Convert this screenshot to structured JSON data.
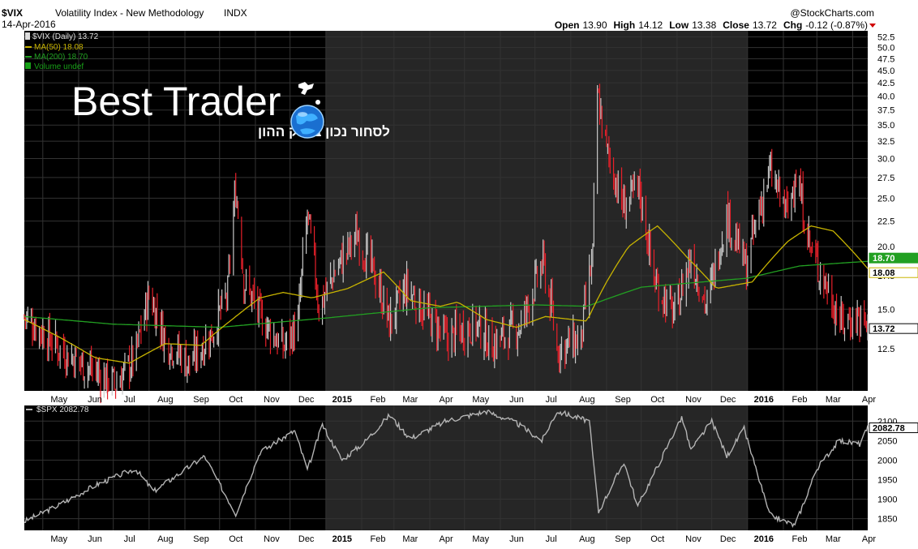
{
  "header": {
    "symbol": "$VIX",
    "name": "Volatility Index - New Methodology",
    "exchange": "INDX",
    "date": "14-Apr-2016",
    "watermark": "@StockCharts.com",
    "ohlc": [
      {
        "label": "Open",
        "value": "13.90"
      },
      {
        "label": "High",
        "value": "14.12"
      },
      {
        "label": "Low",
        "value": "13.38"
      },
      {
        "label": "Close",
        "value": "13.72"
      },
      {
        "label": "Chg",
        "value": "-0.12 (-0.87%)"
      }
    ]
  },
  "logo": {
    "title": "Best Trader",
    "subtitle": "לסחור נכון בשוק ההון"
  },
  "colors": {
    "background": "#000000",
    "shaded_year": "#262626",
    "down_bar": "#e8202a",
    "up_bar": "#c8c8c8",
    "ma50": "#c8b400",
    "ma200": "#22a022",
    "spx_line": "#b4b4b4",
    "grid": "#333333",
    "volume_legend": "#18a018",
    "chg_arrow": "#d00000"
  },
  "chart_data": [
    {
      "type": "candlestick",
      "title": "$VIX (Daily) 13.72",
      "legend": [
        {
          "name": "$VIX (Daily) 13.72",
          "color": "#e0e0e0"
        },
        {
          "name": "MA(50) 18.08",
          "color": "#c8b400"
        },
        {
          "name": "MA(200) 18.70",
          "color": "#22a022"
        },
        {
          "name": "Volume undef",
          "color": "#18a018"
        }
      ],
      "x_ticks": [
        "May",
        "Jun",
        "Jul",
        "Aug",
        "Sep",
        "Oct",
        "Nov",
        "Dec",
        "2015",
        "Feb",
        "Mar",
        "Apr",
        "May",
        "Jun",
        "Jul",
        "Aug",
        "Sep",
        "Oct",
        "Nov",
        "Dec",
        "2016",
        "Feb",
        "Mar",
        "Apr"
      ],
      "y_ticks": [
        "12.5",
        "15.0",
        "17.5",
        "20.0",
        "22.5",
        "25.0",
        "27.5",
        "30.0",
        "32.5",
        "35.0",
        "37.5",
        "40.0",
        "42.5",
        "45.0",
        "47.5",
        "50.0",
        "52.5"
      ],
      "y_scale": "log",
      "ylim": [
        10.3,
        54
      ],
      "end_labels": {
        "ma200": "18.70",
        "ma50": "18.08",
        "last": "13.72"
      },
      "anchors": [
        {
          "date": "2014-04-15",
          "value": 14.5
        },
        {
          "date": "2014-05-15",
          "value": 12.5
        },
        {
          "date": "2014-06-15",
          "value": 11.2
        },
        {
          "date": "2014-07-03",
          "value": 10.6
        },
        {
          "date": "2014-07-20",
          "value": 12.0
        },
        {
          "date": "2014-08-01",
          "value": 16.0
        },
        {
          "date": "2014-08-15",
          "value": 13.0
        },
        {
          "date": "2014-09-05",
          "value": 11.6
        },
        {
          "date": "2014-09-25",
          "value": 13.5
        },
        {
          "date": "2014-10-08",
          "value": 16.0
        },
        {
          "date": "2014-10-15",
          "value": 26.0
        },
        {
          "date": "2014-10-22",
          "value": 17.0
        },
        {
          "date": "2014-11-05",
          "value": 14.5
        },
        {
          "date": "2014-11-25",
          "value": 12.5
        },
        {
          "date": "2014-12-08",
          "value": 14.0
        },
        {
          "date": "2014-12-16",
          "value": 23.0
        },
        {
          "date": "2014-12-26",
          "value": 15.0
        },
        {
          "date": "2015-01-10",
          "value": 18.0
        },
        {
          "date": "2015-01-28",
          "value": 21.0
        },
        {
          "date": "2015-02-12",
          "value": 17.5
        },
        {
          "date": "2015-02-25",
          "value": 14.0
        },
        {
          "date": "2015-03-12",
          "value": 16.5
        },
        {
          "date": "2015-03-25",
          "value": 15.0
        },
        {
          "date": "2015-04-15",
          "value": 13.0
        },
        {
          "date": "2015-05-10",
          "value": 14.0
        },
        {
          "date": "2015-05-25",
          "value": 12.7
        },
        {
          "date": "2015-06-20",
          "value": 14.0
        },
        {
          "date": "2015-06-28",
          "value": 16.0
        },
        {
          "date": "2015-07-08",
          "value": 18.5
        },
        {
          "date": "2015-07-20",
          "value": 12.5
        },
        {
          "date": "2015-08-10",
          "value": 13.0
        },
        {
          "date": "2015-08-20",
          "value": 19.0
        },
        {
          "date": "2015-08-24",
          "value": 40.0
        },
        {
          "date": "2015-09-01",
          "value": 31.0
        },
        {
          "date": "2015-09-15",
          "value": 24.0
        },
        {
          "date": "2015-09-29",
          "value": 26.0
        },
        {
          "date": "2015-10-12",
          "value": 17.0
        },
        {
          "date": "2015-10-30",
          "value": 14.5
        },
        {
          "date": "2015-11-13",
          "value": 19.0
        },
        {
          "date": "2015-11-27",
          "value": 15.0
        },
        {
          "date": "2015-12-14",
          "value": 23.0
        },
        {
          "date": "2015-12-31",
          "value": 18.0
        },
        {
          "date": "2016-01-12",
          "value": 24.0
        },
        {
          "date": "2016-01-20",
          "value": 28.0
        },
        {
          "date": "2016-02-05",
          "value": 23.0
        },
        {
          "date": "2016-02-11",
          "value": 28.0
        },
        {
          "date": "2016-02-25",
          "value": 19.5
        },
        {
          "date": "2016-03-10",
          "value": 16.5
        },
        {
          "date": "2016-03-22",
          "value": 14.0
        },
        {
          "date": "2016-04-05",
          "value": 14.5
        },
        {
          "date": "2016-04-14",
          "value": 13.72
        }
      ],
      "ma50_anchors": [
        {
          "date": "2014-04-15",
          "value": 14.3
        },
        {
          "date": "2014-05-15",
          "value": 13.2
        },
        {
          "date": "2014-06-15",
          "value": 12.0
        },
        {
          "date": "2014-07-15",
          "value": 11.7
        },
        {
          "date": "2014-08-15",
          "value": 12.8
        },
        {
          "date": "2014-09-15",
          "value": 12.7
        },
        {
          "date": "2014-10-15",
          "value": 14.5
        },
        {
          "date": "2014-11-05",
          "value": 15.8
        },
        {
          "date": "2014-11-25",
          "value": 16.2
        },
        {
          "date": "2014-12-20",
          "value": 15.8
        },
        {
          "date": "2015-01-20",
          "value": 16.5
        },
        {
          "date": "2015-02-20",
          "value": 17.8
        },
        {
          "date": "2015-03-15",
          "value": 15.6
        },
        {
          "date": "2015-04-10",
          "value": 15.2
        },
        {
          "date": "2015-04-25",
          "value": 15.5
        },
        {
          "date": "2015-05-20",
          "value": 14.3
        },
        {
          "date": "2015-06-15",
          "value": 13.8
        },
        {
          "date": "2015-07-10",
          "value": 14.5
        },
        {
          "date": "2015-08-15",
          "value": 14.2
        },
        {
          "date": "2015-09-01",
          "value": 17.0
        },
        {
          "date": "2015-09-20",
          "value": 20.0
        },
        {
          "date": "2015-10-15",
          "value": 22.0
        },
        {
          "date": "2015-11-10",
          "value": 19.0
        },
        {
          "date": "2015-12-05",
          "value": 16.5
        },
        {
          "date": "2016-01-05",
          "value": 17.0
        },
        {
          "date": "2016-02-05",
          "value": 20.5
        },
        {
          "date": "2016-02-25",
          "value": 22.0
        },
        {
          "date": "2016-03-15",
          "value": 21.5
        },
        {
          "date": "2016-04-14",
          "value": 18.08
        }
      ],
      "ma200_anchors": [
        {
          "date": "2014-04-15",
          "value": 14.5
        },
        {
          "date": "2014-07-01",
          "value": 14.0
        },
        {
          "date": "2014-10-01",
          "value": 13.8
        },
        {
          "date": "2015-01-01",
          "value": 14.4
        },
        {
          "date": "2015-04-01",
          "value": 15.1
        },
        {
          "date": "2015-07-01",
          "value": 15.3
        },
        {
          "date": "2015-08-15",
          "value": 15.2
        },
        {
          "date": "2015-10-01",
          "value": 16.6
        },
        {
          "date": "2016-01-01",
          "value": 17.3
        },
        {
          "date": "2016-02-15",
          "value": 18.3
        },
        {
          "date": "2016-04-14",
          "value": 18.7
        }
      ]
    },
    {
      "type": "line",
      "title": "$SPX 2082.78",
      "legend": [
        {
          "name": "$SPX 2082.78",
          "color": "#b4b4b4"
        }
      ],
      "x_ticks": [
        "May",
        "Jun",
        "Jul",
        "Aug",
        "Sep",
        "Oct",
        "Nov",
        "Dec",
        "2015",
        "Feb",
        "Mar",
        "Apr",
        "May",
        "Jun",
        "Jul",
        "Aug",
        "Sep",
        "Oct",
        "Nov",
        "Dec",
        "2016",
        "Feb",
        "Mar",
        "Apr"
      ],
      "y_ticks": [
        "1850",
        "1900",
        "1950",
        "2000",
        "2050",
        "2100"
      ],
      "ylim": [
        1820,
        2140
      ],
      "last_label": "2082.78",
      "anchors": [
        {
          "date": "2014-04-15",
          "value": 1843
        },
        {
          "date": "2014-05-15",
          "value": 1885
        },
        {
          "date": "2014-06-15",
          "value": 1935
        },
        {
          "date": "2014-07-20",
          "value": 1978
        },
        {
          "date": "2014-08-05",
          "value": 1920
        },
        {
          "date": "2014-09-18",
          "value": 2010
        },
        {
          "date": "2014-10-15",
          "value": 1862
        },
        {
          "date": "2014-11-05",
          "value": 2020
        },
        {
          "date": "2014-12-05",
          "value": 2075
        },
        {
          "date": "2014-12-16",
          "value": 1975
        },
        {
          "date": "2014-12-29",
          "value": 2090
        },
        {
          "date": "2015-01-15",
          "value": 2000
        },
        {
          "date": "2015-02-03",
          "value": 2045
        },
        {
          "date": "2015-02-25",
          "value": 2115
        },
        {
          "date": "2015-03-15",
          "value": 2055
        },
        {
          "date": "2015-04-15",
          "value": 2100
        },
        {
          "date": "2015-05-20",
          "value": 2125
        },
        {
          "date": "2015-06-15",
          "value": 2095
        },
        {
          "date": "2015-07-07",
          "value": 2050
        },
        {
          "date": "2015-07-20",
          "value": 2125
        },
        {
          "date": "2015-08-17",
          "value": 2100
        },
        {
          "date": "2015-08-25",
          "value": 1867
        },
        {
          "date": "2015-09-16",
          "value": 1995
        },
        {
          "date": "2015-09-28",
          "value": 1882
        },
        {
          "date": "2015-11-05",
          "value": 2110
        },
        {
          "date": "2015-11-13",
          "value": 2025
        },
        {
          "date": "2015-12-01",
          "value": 2100
        },
        {
          "date": "2015-12-14",
          "value": 2010
        },
        {
          "date": "2015-12-29",
          "value": 2080
        },
        {
          "date": "2016-01-20",
          "value": 1860
        },
        {
          "date": "2016-02-11",
          "value": 1832
        },
        {
          "date": "2016-03-01",
          "value": 1978
        },
        {
          "date": "2016-03-20",
          "value": 2050
        },
        {
          "date": "2016-04-07",
          "value": 2041
        },
        {
          "date": "2016-04-14",
          "value": 2082.78
        }
      ]
    }
  ]
}
